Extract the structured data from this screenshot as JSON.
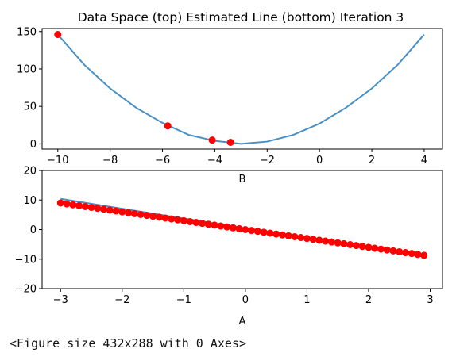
{
  "chart_data": [
    {
      "type": "line",
      "title": "Data Space (top) Estimated Line (bottom) Iteration 3",
      "xlabel": "B",
      "ylabel": "",
      "xlim": [
        -10.6,
        4.7
      ],
      "ylim": [
        -7,
        154
      ],
      "xticks": [
        -10,
        -8,
        -6,
        -4,
        -2,
        0,
        2,
        4
      ],
      "yticks": [
        0,
        50,
        100,
        150
      ],
      "line_color": "#4a8fc4",
      "marker_color": "#ff0000",
      "series": [
        {
          "kind": "line",
          "x": [
            -10,
            -9,
            -8,
            -7,
            -6,
            -5,
            -4,
            -3,
            -2,
            -1,
            0,
            1,
            2,
            3,
            4
          ],
          "y": [
            146,
            106,
            74,
            48,
            28,
            12,
            4,
            0,
            3,
            12,
            27,
            48,
            74,
            106,
            146
          ]
        },
        {
          "kind": "scatter",
          "x": [
            -10,
            -5.8,
            -4.1,
            -3.4
          ],
          "y": [
            146,
            24,
            5,
            2
          ]
        }
      ]
    },
    {
      "type": "line",
      "title": "",
      "xlabel": "A",
      "ylabel": "",
      "xlim": [
        -3.3,
        3.2
      ],
      "ylim": [
        -20,
        20
      ],
      "xticks": [
        -3,
        -2,
        -1,
        0,
        1,
        2,
        3
      ],
      "yticks": [
        -20,
        -10,
        0,
        10,
        20
      ],
      "line_color": "#4a8fc4",
      "marker_color": "#ff0000",
      "series": [
        {
          "kind": "line",
          "x": [
            -3,
            2.9
          ],
          "y": [
            10.4,
            -9.2
          ]
        },
        {
          "kind": "scatter",
          "x": [
            -3.0,
            -2.9,
            -2.8,
            -2.7,
            -2.6,
            -2.5,
            -2.4,
            -2.3,
            -2.2,
            -2.1,
            -2.0,
            -1.9,
            -1.8,
            -1.7,
            -1.6,
            -1.5,
            -1.4,
            -1.3,
            -1.2,
            -1.1,
            -1.0,
            -0.9,
            -0.8,
            -0.7,
            -0.6,
            -0.5,
            -0.4,
            -0.3,
            -0.2,
            -0.1,
            0.0,
            0.1,
            0.2,
            0.3,
            0.4,
            0.5,
            0.6,
            0.7,
            0.8,
            0.9,
            1.0,
            1.1,
            1.2,
            1.3,
            1.4,
            1.5,
            1.6,
            1.7,
            1.8,
            1.9,
            2.0,
            2.1,
            2.2,
            2.3,
            2.4,
            2.5,
            2.6,
            2.7,
            2.8,
            2.9
          ],
          "y": [
            9.0,
            8.7,
            8.4,
            8.1,
            7.8,
            7.5,
            7.2,
            6.9,
            6.6,
            6.3,
            6.0,
            5.7,
            5.4,
            5.1,
            4.8,
            4.5,
            4.2,
            3.9,
            3.6,
            3.3,
            3.0,
            2.7,
            2.4,
            2.1,
            1.8,
            1.5,
            1.2,
            0.9,
            0.6,
            0.3,
            0.0,
            -0.3,
            -0.6,
            -0.9,
            -1.2,
            -1.5,
            -1.8,
            -2.1,
            -2.4,
            -2.7,
            -3.0,
            -3.3,
            -3.6,
            -3.9,
            -4.2,
            -4.5,
            -4.8,
            -5.1,
            -5.4,
            -5.7,
            -6.0,
            -6.3,
            -6.6,
            -6.9,
            -7.2,
            -7.5,
            -7.8,
            -8.1,
            -8.4,
            -8.7
          ]
        }
      ]
    }
  ],
  "caption": "<Figure size 432x288 with 0 Axes>"
}
